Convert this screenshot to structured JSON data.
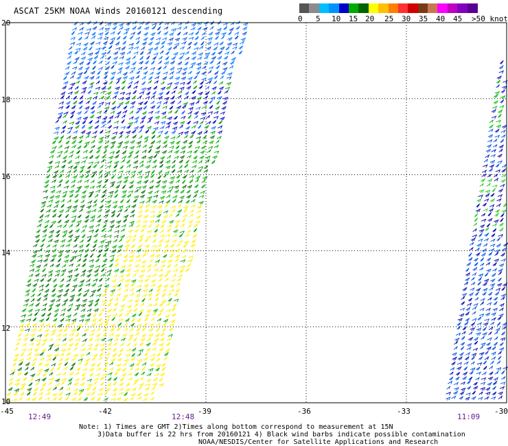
{
  "title": "ASCAT 25KM NOAA Winds 20160121 descending",
  "legend": {
    "colors": [
      "#555555",
      "#8c8c8c",
      "#00bfff",
      "#0090ff",
      "#0000c8",
      "#00aa00",
      "#006400",
      "#ffff00",
      "#ffc000",
      "#ff7f00",
      "#ff3030",
      "#d00000",
      "#7a3a14",
      "#c87850",
      "#ff00ff",
      "#c000c0",
      "#8000c0",
      "#5a0090"
    ],
    "labels": [
      "0",
      "5",
      "10",
      "15",
      "20",
      "25",
      "30",
      "35",
      "40",
      "45",
      ">50 knots"
    ]
  },
  "axes": {
    "lat_labels": [
      "20",
      "18",
      "16",
      "14",
      "12",
      "10"
    ],
    "lon_labels": [
      "-45",
      "-42",
      "-39",
      "-36",
      "-33",
      "-30"
    ]
  },
  "chart_data": {
    "type": "scatter",
    "title": "ASCAT 25KM NOAA Winds 20160121 descending",
    "xlim": [
      -45,
      -30
    ],
    "ylim": [
      10,
      20
    ],
    "grid": true,
    "swaths": [
      {
        "time": "12:49",
        "speed_knots_range": [
          10,
          25
        ]
      },
      {
        "time": "12:48",
        "speed_knots_range": [
          10,
          25
        ]
      },
      {
        "time": "11:09",
        "speed_knots_range": [
          10,
          20
        ]
      }
    ]
  },
  "times": [
    "12:49",
    "12:48",
    "11:09"
  ],
  "notes": [
    "Note: 1) Times are GMT 2)Times along bottom correspond to measurement at 15N",
    "3)Data buffer is 22 hrs from 20160121 4) Black wind barbs indicate possible contamination",
    "NOAA/NESDIS/Center for Satellite Applications and Research"
  ]
}
